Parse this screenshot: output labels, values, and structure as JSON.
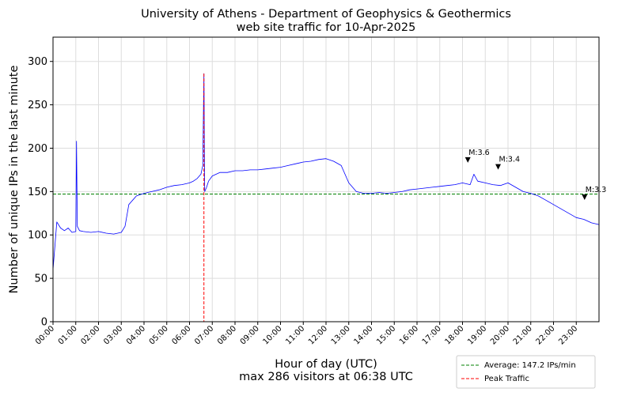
{
  "chart_data": {
    "type": "line",
    "title": "University of Athens - Department of Geophysics & Geothermics",
    "subtitle": "web site traffic for 10-Apr-2025",
    "xlabel": "Hour of day (UTC)",
    "xlabel_sub": "max 286 visitors at 06:38 UTC",
    "ylabel": "Number of unique IPs in the last minute",
    "xlim": [
      0,
      1440
    ],
    "ylim": [
      0,
      328
    ],
    "yticks": [
      0,
      50,
      100,
      150,
      200,
      250,
      300
    ],
    "xtick_labels": [
      "00:00",
      "01:00",
      "02:00",
      "03:00",
      "04:00",
      "05:00",
      "06:00",
      "07:00",
      "08:00",
      "09:00",
      "10:00",
      "11:00",
      "12:00",
      "13:00",
      "14:00",
      "15:00",
      "16:00",
      "17:00",
      "18:00",
      "19:00",
      "20:00",
      "21:00",
      "22:00",
      "23:00"
    ],
    "grid": true,
    "legend_position": "below-right",
    "series": [
      {
        "color": "#0000ff",
        "x_unit": "minutes since 00:00",
        "x": [
          0,
          10,
          20,
          30,
          40,
          50,
          60,
          62,
          64,
          70,
          80,
          100,
          120,
          140,
          160,
          180,
          190,
          200,
          210,
          220,
          240,
          260,
          280,
          300,
          320,
          340,
          360,
          370,
          380,
          390,
          395,
          398,
          400,
          405,
          410,
          420,
          440,
          460,
          480,
          500,
          520,
          540,
          560,
          580,
          600,
          620,
          640,
          660,
          680,
          700,
          720,
          740,
          760,
          780,
          800,
          820,
          840,
          860,
          880,
          900,
          920,
          940,
          960,
          980,
          1000,
          1020,
          1040,
          1060,
          1080,
          1100,
          1110,
          1120,
          1140,
          1160,
          1180,
          1200,
          1220,
          1240,
          1260,
          1280,
          1300,
          1320,
          1340,
          1360,
          1380,
          1400,
          1420,
          1440
        ],
        "values": [
          60,
          115,
          108,
          105,
          108,
          103,
          104,
          208,
          110,
          105,
          104,
          103,
          104,
          102,
          101,
          103,
          110,
          135,
          140,
          145,
          148,
          150,
          152,
          155,
          157,
          158,
          160,
          162,
          165,
          170,
          180,
          286,
          150,
          155,
          162,
          168,
          172,
          172,
          174,
          174,
          175,
          175,
          176,
          177,
          178,
          180,
          182,
          184,
          185,
          187,
          188,
          185,
          180,
          160,
          150,
          148,
          148,
          149,
          148,
          149,
          150,
          152,
          153,
          154,
          155,
          156,
          157,
          158,
          160,
          158,
          170,
          162,
          160,
          158,
          157,
          160,
          155,
          150,
          148,
          145,
          140,
          135,
          130,
          125,
          120,
          118,
          114,
          112
        ]
      }
    ],
    "average": {
      "value": 147.2,
      "color": "#008000",
      "label": "Average: 147.2 IPs/min"
    },
    "peak": {
      "x": 398,
      "value": 286,
      "color": "#ff0000",
      "label": "Peak Traffic"
    },
    "annotations": [
      {
        "x": 1094,
        "y": 186,
        "text": "M:3.6"
      },
      {
        "x": 1174,
        "y": 178,
        "text": "M:3.4"
      },
      {
        "x": 1402,
        "y": 143,
        "text": "M:3.3"
      }
    ]
  }
}
